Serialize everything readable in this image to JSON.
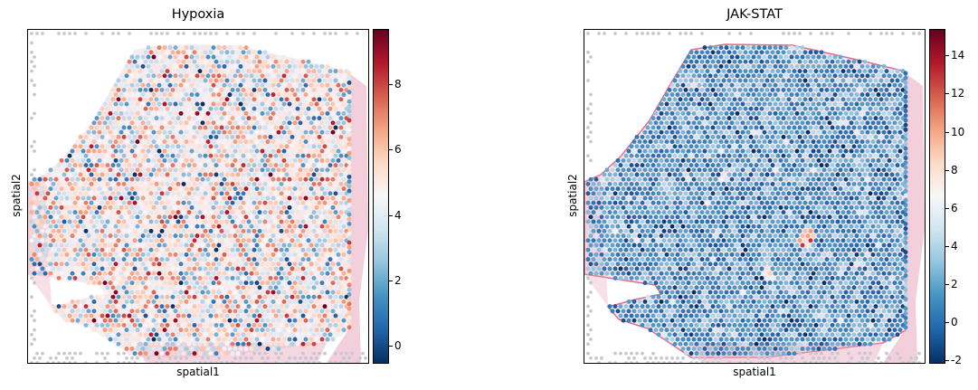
{
  "chart_data": [
    {
      "type": "scatter",
      "title": "Hypoxia",
      "xlabel": "spatial1",
      "ylabel": "spatial2",
      "colorbar": {
        "cmap": "RdBu_r",
        "vmin": -0.5,
        "vmax": 9.7,
        "ticks": [
          0,
          2,
          4,
          6,
          8
        ]
      },
      "value_profile": {
        "mean": 4.6,
        "spread": 1.9
      }
    },
    {
      "type": "scatter",
      "title": "JAK-STAT",
      "xlabel": "spatial1",
      "ylabel": "spatial2",
      "colorbar": {
        "cmap": "RdBu_r",
        "vmin": -2.1,
        "vmax": 15.4,
        "ticks": [
          -2,
          0,
          2,
          4,
          6,
          8,
          10,
          12,
          14
        ]
      },
      "value_profile": {
        "mean": 1.6,
        "spread": 1.6
      }
    }
  ],
  "colors": {
    "tissue_stain": "#e8a7bd",
    "background_spot": "#c8c8d4",
    "frame": "#000000"
  }
}
